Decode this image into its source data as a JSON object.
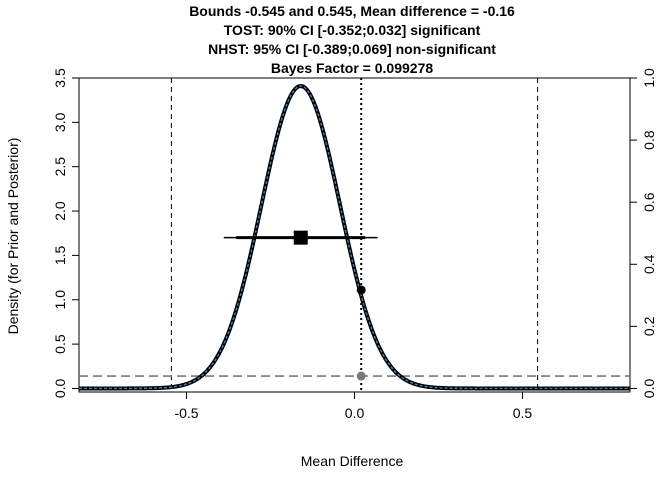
{
  "chart_data": {
    "type": "line",
    "title_lines": [
      "Bounds -0.545 and 0.545, Mean difference = -0.16",
      "TOST: 90% CI [-0.352;0.032] significant",
      "NHST: 95% CI [-0.389;0.069] non-significant",
      "Bayes Factor = 0.099278"
    ],
    "xlabel": "Mean Difference",
    "ylabel": "Density (for Prior and Posterior)",
    "xlim": [
      -0.82,
      0.82
    ],
    "ylim": [
      -0.04,
      3.5
    ],
    "y2lim": [
      -0.0114,
      1.0
    ],
    "x_ticks": [
      -0.5,
      0.0,
      0.5
    ],
    "x_tick_labels": [
      "-0.5",
      "0.0",
      "0.5"
    ],
    "y_ticks": [
      0.0,
      0.5,
      1.0,
      1.5,
      2.0,
      2.5,
      3.0,
      3.5
    ],
    "y_tick_labels": [
      "0.0",
      "0.5",
      "1.0",
      "1.5",
      "2.0",
      "2.5",
      "3.0",
      "3.5"
    ],
    "y2_ticks": [
      0.0,
      0.2,
      0.4,
      0.6,
      0.8,
      1.0
    ],
    "y2_tick_labels": [
      "0.0",
      "0.2",
      "0.4",
      "0.6",
      "0.8",
      "1.0"
    ],
    "grid": false,
    "bounds": [
      -0.545,
      0.545
    ],
    "null_value": 0.02,
    "mean_difference": -0.16,
    "ci_90": [
      -0.352,
      0.032
    ],
    "ci_95": [
      -0.389,
      0.069
    ],
    "point_estimate_y": 1.7,
    "posterior_curve": {
      "mean": -0.16,
      "sd": 0.117,
      "peak_density": 3.41,
      "color_outer": "#000000",
      "color_inner": "#4a7fb0"
    },
    "prior_density_line": 0.14,
    "posterior_at_null": 1.11,
    "prior_at_null": 0.14,
    "colors": {
      "curve": "#000000",
      "curve_inner": "#4a7fb0",
      "prior_line": "#7a7a7a",
      "prior_point": "#7a7a7a",
      "ci": "#000000"
    }
  }
}
